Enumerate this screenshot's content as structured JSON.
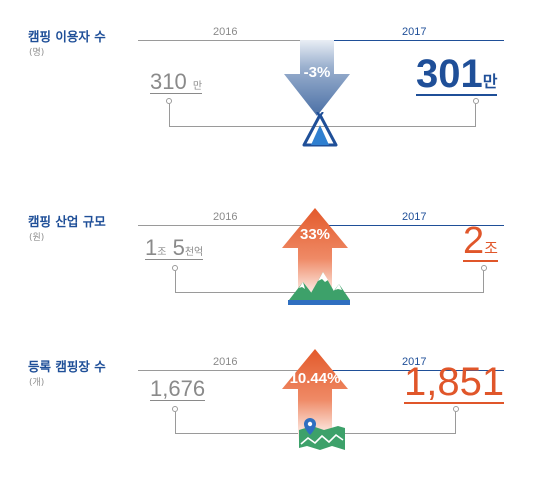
{
  "sections": [
    {
      "title": "캠핑 이용자 수",
      "unit": "(명)",
      "year_left": "2016",
      "year_right": "2017",
      "value_left": "310",
      "value_left_suffix": "만",
      "value_right": "301",
      "value_right_suffix": "만",
      "change": "-3%",
      "direction": "down",
      "icon": "tent-icon"
    },
    {
      "title": "캠핑 산업 규모",
      "unit": "(원)",
      "year_left": "2016",
      "year_right": "2017",
      "value_left_a": "1",
      "value_left_a_suffix": "조",
      "value_left_b": "5",
      "value_left_b_suffix": "천억",
      "value_right": "2",
      "value_right_suffix": "조",
      "change": "33%",
      "direction": "up",
      "icon": "mountain-icon"
    },
    {
      "title": "등록 캠핑장 수",
      "unit": "(개)",
      "year_left": "2016",
      "year_right": "2017",
      "value_left": "1,676",
      "value_right": "1,851",
      "change": "10.44%",
      "direction": "up",
      "icon": "map-pin-icon"
    }
  ],
  "colors": {
    "navy": "#1f4f98",
    "orange": "#e0562a",
    "gray": "#8a8a8a",
    "green": "#3da16a"
  }
}
